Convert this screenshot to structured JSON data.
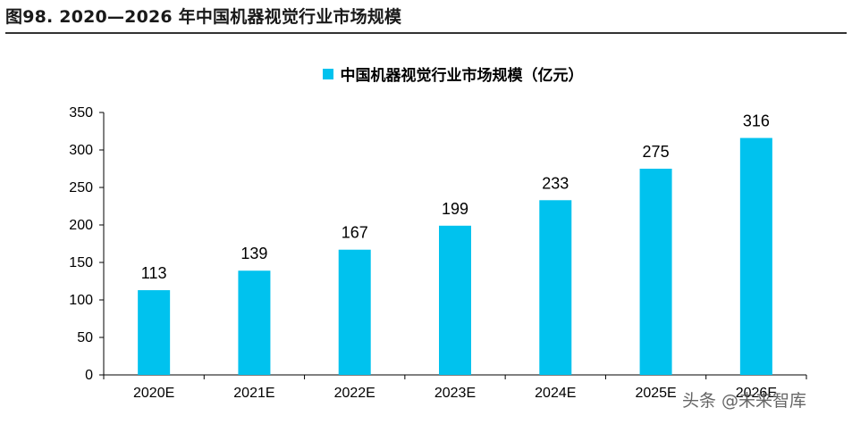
{
  "figure": {
    "title": "图98. 2020—2026 年中国机器视觉行业市场规模"
  },
  "watermark": "头条 @未来智库",
  "colors": {
    "bar": "#00c2ee",
    "axis": "#000000"
  },
  "chart_data": {
    "type": "bar",
    "categories": [
      "2020E",
      "2021E",
      "2022E",
      "2023E",
      "2024E",
      "2025E",
      "2026E"
    ],
    "series": [
      {
        "name": "中国机器视觉行业市场规模（亿元）",
        "values": [
          113,
          139,
          167,
          199,
          233,
          275,
          316
        ]
      }
    ],
    "ylim": [
      0,
      350
    ],
    "yticks": [
      0,
      50,
      100,
      150,
      200,
      250,
      300,
      350
    ],
    "grid": false,
    "legend": "top-center",
    "data_labels": true
  }
}
